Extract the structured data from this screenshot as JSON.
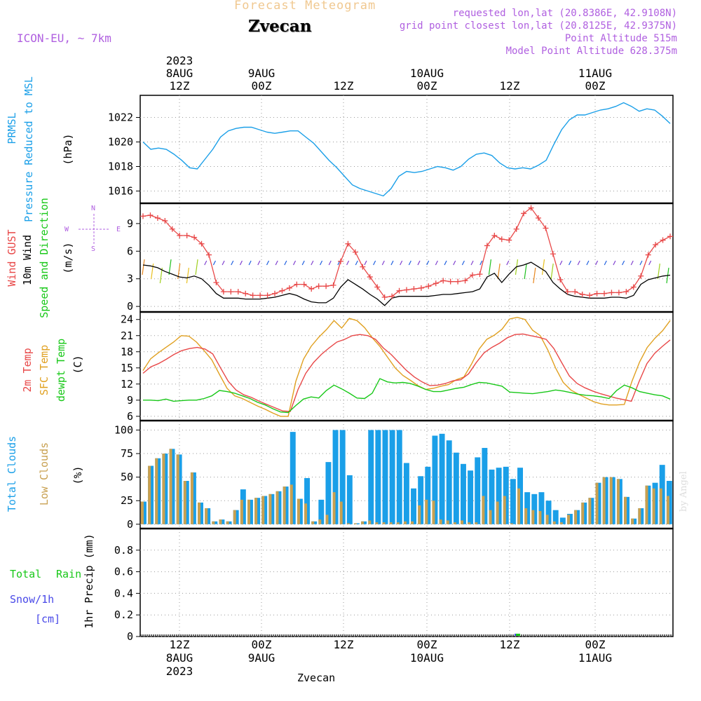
{
  "header": {
    "title": "Forecast Meteogram",
    "location": "Zvecan",
    "model": "ICON-EU, ~ 7km",
    "requested": "requested lon,lat (20.8386E, 42.9108N)",
    "gridpoint": "grid point closest lon,lat (20.8125E, 42.9375N)",
    "altitude": "Point Altitude 515m",
    "model_altitude": "Model Point Altitude 628.375m",
    "footer": "Zvecan",
    "credit": "by Angel",
    "compass": {
      "w": "W",
      "e": "E",
      "n": "N",
      "s": "S"
    }
  },
  "colors": {
    "pressure": "#1a9fe8",
    "gust": "#e84848",
    "wind": "#000000",
    "temp2m": "#e84848",
    "sfc": "#e0a020",
    "dewpt": "#18c818",
    "totalclouds": "#1a9fe8",
    "lowclouds": "#c8a050",
    "rain": "#18c818",
    "snow": "#4848e8",
    "purple": "#b060e0",
    "title": "#f0c890"
  },
  "time_axis": {
    "top": [
      {
        "l1": "2023",
        "l2": "8AUG",
        "l3": "12Z"
      },
      {
        "l1": "",
        "l2": "9AUG",
        "l3": "00Z"
      },
      {
        "l1": "",
        "l2": "",
        "l3": "12Z"
      },
      {
        "l1": "",
        "l2": "10AUG",
        "l3": "00Z"
      },
      {
        "l1": "",
        "l2": "",
        "l3": "12Z"
      },
      {
        "l1": "",
        "l2": "11AUG",
        "l3": "00Z"
      }
    ],
    "bottom": [
      {
        "l1": "12Z",
        "l2": "8AUG",
        "l3": "2023"
      },
      {
        "l1": "00Z",
        "l2": "9AUG",
        "l3": ""
      },
      {
        "l1": "12Z",
        "l2": "",
        "l3": ""
      },
      {
        "l1": "00Z",
        "l2": "10AUG",
        "l3": ""
      },
      {
        "l1": "12Z",
        "l2": "",
        "l3": ""
      },
      {
        "l1": "00Z",
        "l2": "11AUG",
        "l3": ""
      }
    ]
  },
  "chart_data": [
    {
      "type": "line",
      "id": "pressure",
      "ylabels": [
        "PRMSL",
        "Pressure Reduced to MSL",
        "(hPa)"
      ],
      "yticks": [
        1016,
        1018,
        1020,
        1022
      ],
      "ylim": [
        1015,
        1023.8
      ],
      "series": [
        {
          "values": [
            1020.0,
            1019.4,
            1019.5,
            1019.4,
            1019.0,
            1018.5,
            1017.9,
            1017.8,
            1018.6,
            1019.4,
            1020.4,
            1020.9,
            1021.1,
            1021.2,
            1021.2,
            1021.0,
            1020.8,
            1020.7,
            1020.8,
            1020.9,
            1020.9,
            1020.4,
            1019.9,
            1019.2,
            1018.5,
            1017.9,
            1017.2,
            1016.5,
            1016.2,
            1016.0,
            1015.8,
            1015.6,
            1016.2,
            1017.2,
            1017.6,
            1017.5,
            1017.6,
            1017.8,
            1018.0,
            1017.9,
            1017.7,
            1018.0,
            1018.6,
            1019.0,
            1019.1,
            1018.9,
            1018.3,
            1017.9,
            1017.8,
            1017.9,
            1017.8,
            1018.1,
            1018.5,
            1019.8,
            1021.0,
            1021.8,
            1022.2,
            1022.2,
            1022.4,
            1022.6,
            1022.7,
            1022.9,
            1023.2,
            1022.9,
            1022.5,
            1022.7,
            1022.6,
            1022.1,
            1021.5
          ]
        }
      ]
    },
    {
      "type": "line",
      "id": "wind",
      "ylabels": [
        "Wind GUST",
        "10m Wind",
        "Speed and Direction",
        "(m/s)"
      ],
      "yticks": [
        0,
        3,
        6,
        9
      ],
      "ylim": [
        -0.6,
        11.2
      ],
      "series": [
        {
          "name": "Wind GUST",
          "values": [
            9.8,
            9.9,
            9.6,
            9.3,
            8.4,
            7.7,
            7.7,
            7.5,
            6.8,
            5.6,
            2.6,
            1.6,
            1.6,
            1.6,
            1.4,
            1.2,
            1.2,
            1.2,
            1.4,
            1.7,
            2.0,
            2.4,
            2.4,
            1.9,
            2.2,
            2.2,
            2.3,
            4.9,
            6.8,
            5.9,
            4.3,
            3.2,
            2.1,
            1.0,
            1.1,
            1.7,
            1.8,
            1.9,
            2.0,
            2.2,
            2.5,
            2.8,
            2.7,
            2.7,
            2.8,
            3.4,
            3.5,
            6.6,
            7.7,
            7.3,
            7.2,
            8.4,
            10.1,
            10.7,
            9.6,
            8.5,
            5.7,
            2.9,
            1.6,
            1.6,
            1.3,
            1.2,
            1.4,
            1.4,
            1.5,
            1.5,
            1.6,
            2.1,
            3.3,
            5.6,
            6.7,
            7.2,
            7.6
          ]
        },
        {
          "name": "10m Wind",
          "values": [
            4.5,
            4.4,
            4.2,
            3.8,
            3.5,
            3.2,
            3.1,
            3.3,
            3.0,
            2.3,
            1.4,
            0.9,
            0.9,
            0.9,
            0.8,
            0.8,
            0.8,
            0.9,
            1.0,
            1.2,
            1.4,
            1.2,
            0.8,
            0.5,
            0.4,
            0.4,
            0.9,
            2.1,
            2.9,
            2.4,
            1.9,
            1.3,
            0.8,
            0.1,
            0.9,
            1.1,
            1.1,
            1.1,
            1.1,
            1.1,
            1.2,
            1.3,
            1.3,
            1.4,
            1.5,
            1.6,
            1.9,
            3.2,
            3.6,
            2.6,
            3.5,
            4.3,
            4.5,
            4.8,
            4.3,
            3.8,
            2.6,
            1.9,
            1.3,
            1.1,
            1.0,
            0.9,
            0.9,
            0.9,
            1.0,
            1.0,
            0.9,
            1.2,
            2.4,
            2.9,
            3.1,
            3.3,
            3.4
          ]
        }
      ]
    },
    {
      "type": "line",
      "id": "temperature",
      "ylabels": [
        "2m Temp",
        "SFC Temp",
        "dewpt Temp",
        "(C)"
      ],
      "yticks": [
        6,
        9,
        12,
        15,
        18,
        21,
        24
      ],
      "ylim": [
        5.2,
        25.4
      ],
      "series": [
        {
          "name": "2m Temp",
          "values": [
            14.0,
            15.2,
            15.8,
            16.6,
            17.5,
            18.2,
            18.6,
            18.8,
            18.5,
            17.6,
            15.0,
            12.5,
            10.9,
            10.0,
            9.5,
            8.8,
            8.2,
            7.6,
            7.0,
            6.9,
            11.0,
            14.0,
            16.0,
            17.5,
            18.7,
            19.8,
            20.3,
            21.0,
            21.2,
            21.0,
            20.3,
            18.7,
            17.5,
            16.0,
            14.5,
            13.3,
            12.4,
            11.7,
            11.8,
            12.1,
            12.6,
            12.8,
            13.9,
            16.0,
            17.8,
            18.8,
            19.6,
            20.6,
            21.2,
            21.3,
            21.0,
            20.7,
            20.3,
            18.6,
            16.0,
            13.5,
            12.1,
            11.3,
            10.7,
            10.2,
            9.8,
            9.4,
            9.1,
            8.8,
            12.5,
            15.8,
            17.7,
            19.0,
            20.2
          ]
        },
        {
          "name": "SFC Temp",
          "values": [
            14.5,
            16.7,
            17.8,
            18.8,
            19.8,
            21.0,
            20.9,
            19.8,
            18.2,
            16.5,
            13.8,
            11.2,
            9.8,
            9.3,
            8.6,
            7.9,
            7.3,
            6.6,
            6.0,
            6.0,
            12.5,
            16.6,
            19.0,
            20.7,
            22.1,
            23.8,
            22.4,
            24.2,
            23.8,
            22.5,
            20.6,
            19.0,
            17.0,
            15.0,
            13.6,
            12.7,
            11.7,
            11.0,
            11.2,
            11.6,
            11.9,
            12.8,
            13.3,
            15.7,
            18.5,
            20.3,
            21.1,
            22.2,
            24.1,
            24.4,
            24.0,
            22.0,
            21.0,
            18.3,
            15.0,
            12.3,
            10.9,
            10.1,
            9.4,
            8.7,
            8.3,
            8.1,
            8.1,
            8.2,
            12.5,
            16.1,
            18.8,
            20.5,
            21.9,
            23.8
          ]
        },
        {
          "name": "dewpt Temp",
          "values": [
            9.0,
            9.0,
            8.9,
            9.2,
            8.8,
            8.9,
            9.0,
            9.0,
            9.3,
            9.8,
            10.8,
            10.6,
            10.3,
            9.8,
            9.3,
            8.6,
            8.1,
            7.4,
            6.8,
            6.7,
            8.0,
            9.2,
            9.6,
            9.4,
            10.8,
            11.8,
            11.1,
            10.3,
            9.4,
            9.3,
            10.3,
            13.0,
            12.4,
            12.2,
            12.3,
            12.1,
            11.6,
            11.0,
            10.6,
            10.6,
            10.9,
            11.2,
            11.4,
            11.9,
            12.3,
            12.2,
            11.9,
            11.6,
            10.5,
            10.4,
            10.3,
            10.2,
            10.4,
            10.6,
            10.9,
            10.7,
            10.4,
            10.1,
            9.9,
            9.8,
            9.6,
            9.3,
            10.8,
            11.8,
            11.3,
            10.6,
            10.3,
            10.0,
            9.8,
            9.2
          ]
        }
      ]
    },
    {
      "type": "bar",
      "id": "clouds",
      "ylabels": [
        "Total Clouds",
        "Low Clouds",
        "(%)"
      ],
      "yticks": [
        0,
        25,
        50,
        75,
        100
      ],
      "ylim": [
        -4.6,
        110
      ],
      "series": [
        {
          "name": "Total Clouds",
          "values": [
            24,
            62,
            70,
            75,
            80,
            74,
            46,
            55,
            23,
            17,
            3,
            5,
            3,
            15,
            37,
            26,
            28,
            30,
            32,
            35,
            40,
            98,
            27,
            49,
            3,
            26,
            66,
            100,
            100,
            52,
            1,
            3,
            100,
            100,
            100,
            100,
            100,
            65,
            38,
            51,
            61,
            94,
            96,
            89,
            76,
            64,
            57,
            71,
            81,
            58,
            60,
            61,
            48,
            60,
            34,
            32,
            34,
            25,
            15,
            7,
            11,
            15,
            23,
            28,
            44,
            50,
            50,
            48,
            29,
            6,
            17,
            41,
            44,
            63,
            46
          ]
        },
        {
          "name": "Low Clouds",
          "values": [
            24,
            62,
            70,
            75,
            80,
            74,
            46,
            55,
            23,
            17,
            3,
            5,
            3,
            15,
            26,
            26,
            28,
            30,
            32,
            35,
            40,
            42,
            27,
            22,
            3,
            5,
            10,
            34,
            24,
            1,
            1,
            3,
            4,
            2,
            2,
            2,
            2,
            3,
            3,
            20,
            26,
            25,
            5,
            4,
            2,
            4,
            2,
            2,
            30,
            15,
            24,
            30,
            1,
            38,
            17,
            15,
            14,
            10,
            3,
            2,
            10,
            15,
            23,
            28,
            44,
            50,
            50,
            48,
            29,
            6,
            17,
            41,
            38,
            38,
            30
          ]
        }
      ]
    },
    {
      "type": "bar",
      "id": "precip",
      "ylabels": [
        "Total",
        "Rain",
        "Snow/1h",
        "[cm]",
        "1hr Precip (mm)"
      ],
      "yticks": [
        "0",
        "0.2",
        "0.4",
        "0.6",
        "0.8"
      ],
      "ylim": [
        0,
        1.0
      ],
      "series": [
        {
          "name": "Total",
          "values": [
            0.005
          ],
          "at_index": 45
        },
        {
          "name": "Rain",
          "values": [
            0.005
          ],
          "at_index": 45
        }
      ]
    }
  ]
}
